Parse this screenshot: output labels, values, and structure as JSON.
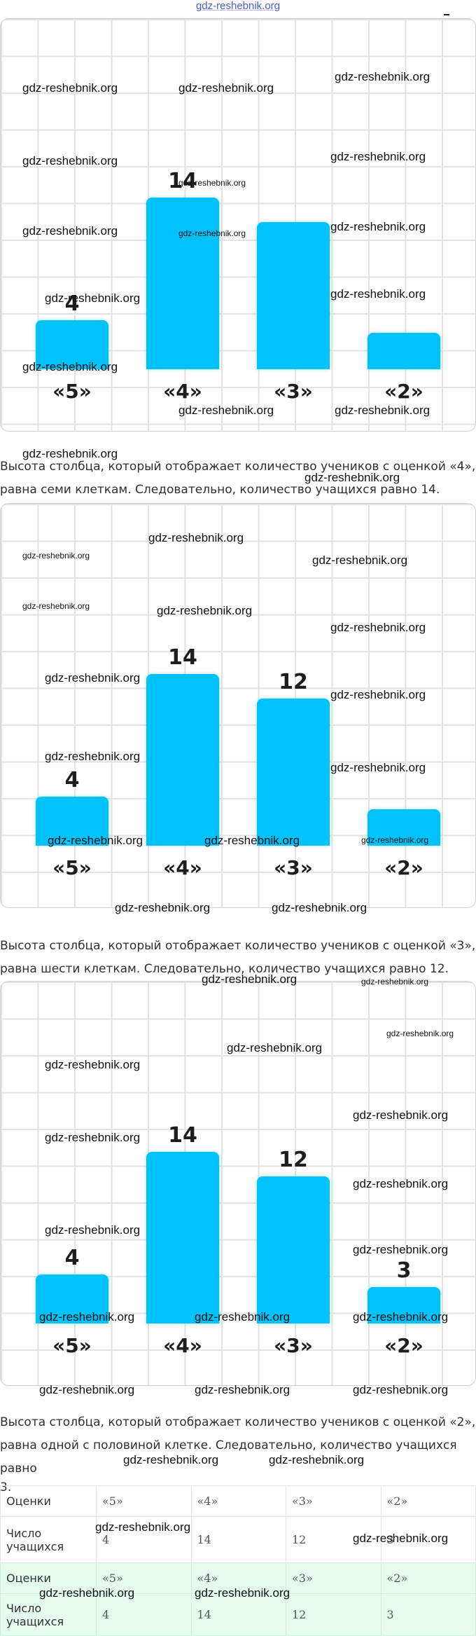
{
  "site": {
    "title": "gdz-reshebnik.org"
  },
  "watermark": "gdz-reshebnik.org",
  "charts": [
    {
      "categories": [
        "«5»",
        "«4»",
        "«3»",
        "«2»"
      ],
      "values": [
        4,
        14,
        12,
        3
      ],
      "shown_labels": [
        "4",
        "14",
        "",
        ""
      ]
    },
    {
      "categories": [
        "«5»",
        "«4»",
        "«3»",
        "«2»"
      ],
      "values": [
        4,
        14,
        12,
        3
      ],
      "shown_labels": [
        "4",
        "14",
        "12",
        ""
      ]
    },
    {
      "categories": [
        "«5»",
        "«4»",
        "«3»",
        "«2»"
      ],
      "values": [
        4,
        14,
        12,
        3
      ],
      "shown_labels": [
        "4",
        "14",
        "12",
        "3"
      ]
    }
  ],
  "chart_data": [
    {
      "type": "bar",
      "categories": [
        "«5»",
        "«4»",
        "«3»",
        "«2»"
      ],
      "values": [
        4,
        14,
        12,
        3
      ],
      "ylim": [
        0,
        20
      ]
    },
    {
      "type": "bar",
      "categories": [
        "«5»",
        "«4»",
        "«3»",
        "«2»"
      ],
      "values": [
        4,
        14,
        12,
        3
      ],
      "ylim": [
        0,
        20
      ]
    },
    {
      "type": "bar",
      "categories": [
        "«5»",
        "«4»",
        "«3»",
        "«2»"
      ],
      "values": [
        4,
        14,
        12,
        3
      ],
      "ylim": [
        0,
        20
      ]
    }
  ],
  "paragraphs": {
    "p1_line1": "Высота столбца, который отображает количество учеников с оценкой «4»,",
    "p1_line2": "равна семи клеткам. Следовательно, количество учащихся равно 14.",
    "p2_line1": "Высота столбца, который отображает количество учеников с оценкой «3»,",
    "p2_line2": "равна шести клеткам. Следовательно, количество учащихся равно 12.",
    "p3_line1": "Высота столбца, который отображает количество учеников с оценкой «2»,",
    "p3_line2": "равна одной с половиной клетке. Следовательно, количество учащихся равно",
    "p3_line3": "3."
  },
  "table1": {
    "row1_label": "Оценки",
    "row2_label": "Число учащихся",
    "grades": [
      "«5»",
      "«4»",
      "«3»",
      "«2»"
    ],
    "counts": [
      "4",
      "14",
      "12",
      "3"
    ]
  },
  "table2": {
    "row1_label": "Оценки",
    "row2_label": "Число учащихся",
    "grades": [
      "«5»",
      "«4»",
      "«3»",
      "«2»"
    ],
    "counts": [
      "4",
      "14",
      "12",
      "3"
    ]
  },
  "colors": {
    "bar": "#00c2fb",
    "grid": "#e3e3e3",
    "answer_bg": "#e4fbee"
  }
}
